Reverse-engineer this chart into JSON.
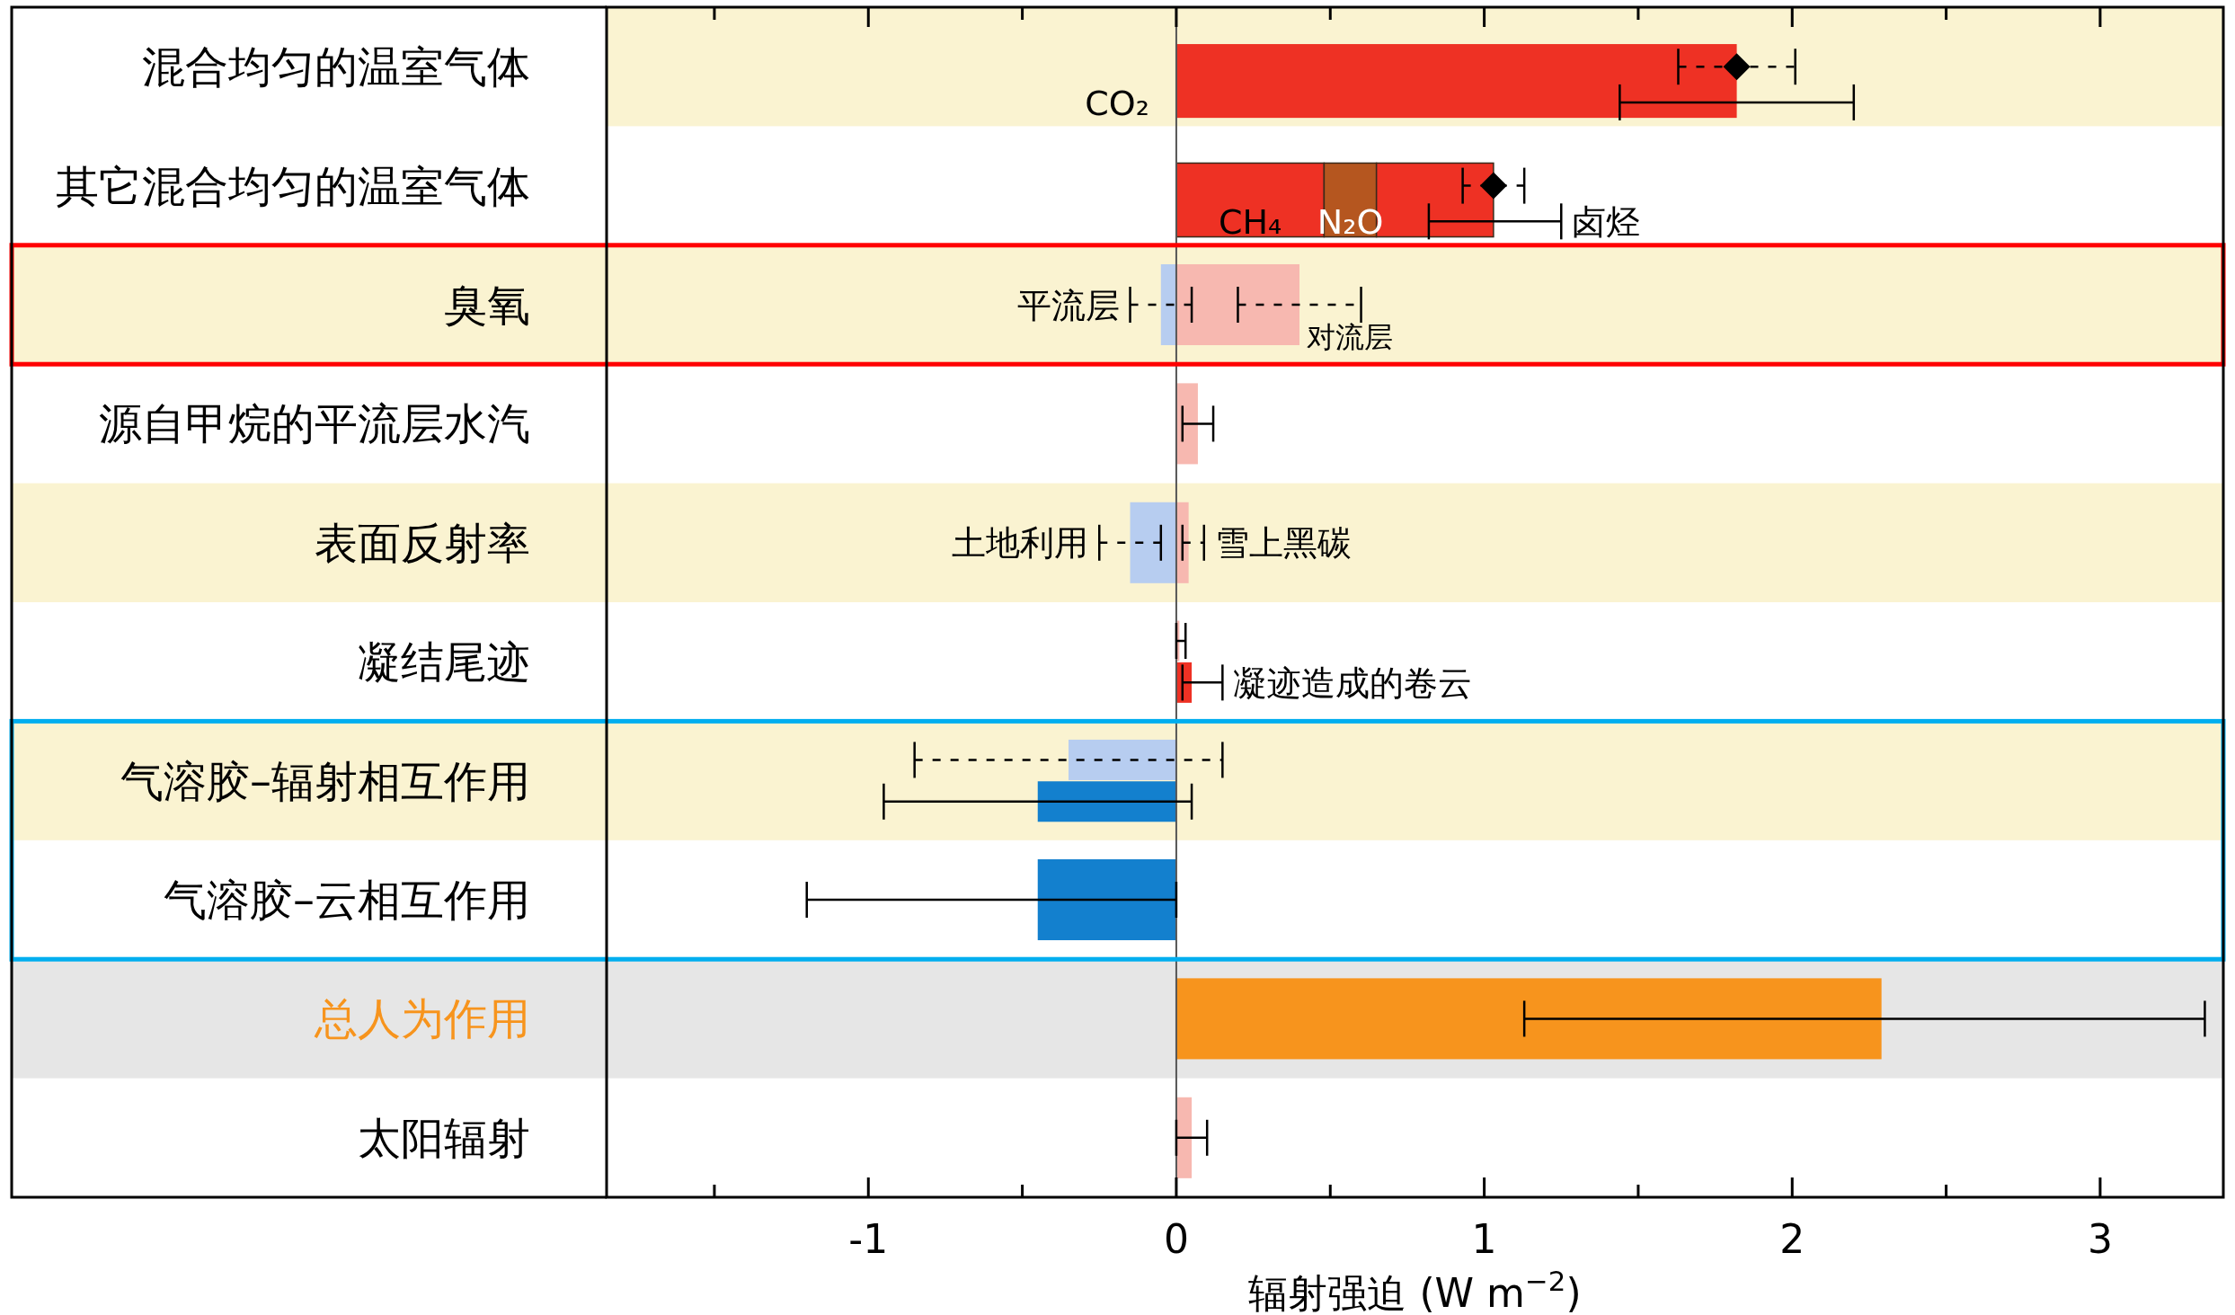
{
  "chart_data": {
    "type": "bar",
    "orientation": "horizontal",
    "marker": "diamond",
    "xlabel": "辐射强迫 (W m$^{−2}$)",
    "xlim": [
      -1.85,
      3.4
    ],
    "xticks": [
      {
        "value": -1.5,
        "label": null
      },
      -1,
      {
        "value": -0.5,
        "label": null
      },
      0,
      {
        "value": 0.5,
        "label": null
      },
      1,
      {
        "value": 1.5,
        "label": null
      },
      2,
      {
        "value": 2.5,
        "label": null
      },
      3
    ],
    "categories": [
      "混合均匀的温室气体",
      "其它混合均匀的温室气体",
      "臭氧",
      "源自甲烷的平流层水汽",
      "表面反射率",
      "凝结尾迹",
      "气溶胶–辐射相互作用",
      "气溶胶–云相互作用",
      "总人为作用",
      "太阳辐射"
    ],
    "bands": [
      {
        "axis": "y",
        "from": "混合均匀的温室气体",
        "to": "混合均匀的温室气体",
        "color": "#faf3d1"
      },
      {
        "axis": "y",
        "from": "臭氧",
        "to": "臭氧",
        "color": "#faf3d1"
      },
      {
        "axis": "y",
        "from": "表面反射率",
        "to": "表面反射率",
        "color": "#faf3d1"
      },
      {
        "axis": "y",
        "from": "气溶胶–辐射相互作用",
        "to": "气溶胶–辐射相互作用",
        "color": "#faf3d1"
      },
      {
        "axis": "y",
        "from": "总人为作用",
        "to": "总人为作用",
        "color": "#e6e6e6"
      }
    ],
    "series": [
      {
        "type": "scatter",
        "color": "#000000",
        "line_style": "dashed",
        "values": [
          1.82,
          1.03,
          null,
          null,
          null,
          null,
          null,
          null,
          null,
          null
        ],
        "errors": [
          [
            1.63,
            2.01
          ],
          [
            0.93,
            1.13
          ],
          null,
          null,
          null,
          null,
          null,
          null,
          null,
          null
        ]
      },
      {
        "type": "bar",
        "name": "CO₂",
        "color": "#ee3124",
        "values": [
          1.82,
          null,
          null,
          null,
          null,
          null,
          null,
          null,
          null,
          null
        ],
        "errors": [
          [
            1.44,
            2.2
          ],
          null,
          null,
          null,
          null,
          null,
          null,
          null,
          null,
          null
        ]
      },
      {
        "type": "bar",
        "name": "CH₄",
        "color": "#ee3124",
        "values": [
          null,
          0.48,
          null,
          null,
          null,
          null,
          null,
          null,
          null,
          null
        ]
      },
      {
        "type": "bar",
        "name": "N₂O",
        "color": "#b5561f",
        "base": [
          null,
          0.48,
          null,
          null,
          null,
          null,
          null,
          null,
          null,
          null
        ],
        "values": [
          null,
          0.17,
          null,
          null,
          null,
          null,
          null,
          null,
          null,
          null
        ]
      },
      {
        "type": "bar",
        "name": "卤烃",
        "color": "#ee3124",
        "base": [
          null,
          0.65,
          null,
          null,
          null,
          null,
          null,
          null,
          null,
          null
        ],
        "values": [
          null,
          0.38,
          null,
          null,
          null,
          null,
          null,
          null,
          null,
          null
        ],
        "errors": [
          null,
          [
            0.82,
            1.25
          ],
          null,
          null,
          null,
          null,
          null,
          null,
          null,
          null
        ]
      },
      {
        "type": "bar",
        "name": "平流层",
        "line_style": "dashed",
        "color": "#b7cdf0",
        "values": [
          null,
          null,
          -0.05,
          null,
          null,
          null,
          null,
          null,
          null,
          null
        ],
        "errors": [
          null,
          null,
          [
            -0.15,
            0.05
          ],
          null,
          null,
          null,
          null,
          null,
          null,
          null
        ]
      },
      {
        "type": "bar",
        "name": "对流层",
        "line_style": "dashed",
        "color": "#f7b8b0",
        "values": [
          null,
          null,
          0.4,
          null,
          null,
          null,
          null,
          null,
          null,
          null
        ],
        "errors": [
          null,
          null,
          [
            0.2,
            0.6
          ],
          null,
          null,
          null,
          null,
          null,
          null,
          null
        ]
      },
      {
        "type": "bar",
        "color": "#f7b8b0",
        "values": [
          null,
          null,
          null,
          0.07,
          null,
          0.01,
          null,
          null,
          null,
          0.05
        ],
        "errors": [
          null,
          null,
          null,
          [
            0.02,
            0.12
          ],
          null,
          [
            0.0,
            0.03
          ],
          null,
          null,
          null,
          [
            0.0,
            0.1
          ]
        ]
      },
      {
        "type": "bar",
        "name": "土地利用",
        "line_style": "dashed",
        "color": "#b7cdf0",
        "values": [
          null,
          null,
          null,
          null,
          -0.15,
          null,
          null,
          null,
          null,
          null
        ],
        "errors": [
          null,
          null,
          null,
          null,
          [
            -0.25,
            -0.05
          ],
          null,
          null,
          null,
          null,
          null
        ]
      },
      {
        "type": "bar",
        "name": "雪上黑碳",
        "line_style": "dashed",
        "color": "#f7b8b0",
        "values": [
          null,
          null,
          null,
          null,
          0.04,
          null,
          null,
          null,
          null,
          null
        ],
        "errors": [
          null,
          null,
          null,
          null,
          [
            0.02,
            0.09
          ],
          null,
          null,
          null,
          null,
          null
        ]
      },
      {
        "type": "bar",
        "name": "凝迹造成的卷云",
        "color": "#ee3124",
        "values": [
          null,
          null,
          null,
          null,
          null,
          0.05,
          null,
          null,
          null,
          null
        ],
        "errors": [
          null,
          null,
          null,
          null,
          null,
          [
            0.02,
            0.15
          ],
          null,
          null,
          null,
          null
        ]
      },
      {
        "type": "bar",
        "line_style": "dashed",
        "color": "#b7cdf0",
        "values": [
          null,
          null,
          null,
          null,
          null,
          null,
          -0.35,
          null,
          null,
          null
        ],
        "errors": [
          null,
          null,
          null,
          null,
          null,
          null,
          [
            -0.85,
            0.15
          ],
          null,
          null,
          null
        ]
      },
      {
        "type": "bar",
        "color": "#1380ce",
        "values": [
          null,
          null,
          null,
          null,
          null,
          null,
          -0.45,
          -0.45,
          null,
          null
        ],
        "errors": [
          null,
          null,
          null,
          null,
          null,
          null,
          [
            -0.95,
            0.05
          ],
          [
            -1.2,
            0.0
          ],
          null,
          null
        ]
      },
      {
        "type": "bar",
        "color": "#f7941d",
        "values": [
          null,
          null,
          null,
          null,
          null,
          null,
          null,
          null,
          2.29,
          null
        ],
        "errors": [
          null,
          null,
          null,
          null,
          null,
          null,
          null,
          null,
          [
            1.13,
            3.34
          ],
          null
        ]
      }
    ]
  }
}
